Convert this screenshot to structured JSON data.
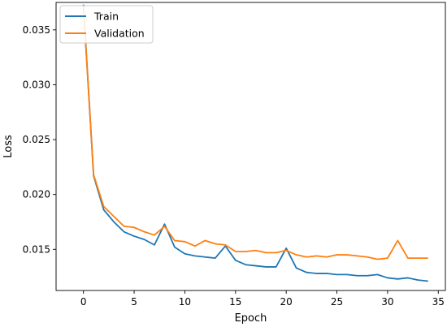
{
  "chart_data": {
    "type": "line",
    "title": "",
    "xlabel": "Epoch",
    "ylabel": "Loss",
    "xlim": [
      -2.7,
      35.7
    ],
    "ylim": [
      0.01125,
      0.0375
    ],
    "xticks": [
      0,
      5,
      10,
      15,
      20,
      25,
      30,
      35
    ],
    "xtick_labels": [
      "0",
      "5",
      "10",
      "15",
      "20",
      "25",
      "30",
      "35"
    ],
    "yticks": [
      0.015,
      0.02,
      0.025,
      0.03,
      0.035
    ],
    "ytick_labels": [
      "0.015",
      "0.020",
      "0.025",
      "0.030",
      "0.035"
    ],
    "grid": false,
    "legend_position": "upper-left",
    "x": [
      0,
      1,
      2,
      3,
      4,
      5,
      6,
      7,
      8,
      9,
      10,
      11,
      12,
      13,
      14,
      15,
      16,
      17,
      18,
      19,
      20,
      21,
      22,
      23,
      24,
      25,
      26,
      27,
      28,
      29,
      30,
      31,
      32,
      33,
      34
    ],
    "series": [
      {
        "name": "Train",
        "color": "#1f77b4",
        "values": [
          0.0373,
          0.0217,
          0.0186,
          0.0175,
          0.0166,
          0.0162,
          0.0159,
          0.0154,
          0.0173,
          0.0152,
          0.0146,
          0.0144,
          0.0143,
          0.0142,
          0.0153,
          0.014,
          0.0136,
          0.0135,
          0.0134,
          0.0134,
          0.0151,
          0.0133,
          0.0129,
          0.0128,
          0.0128,
          0.0127,
          0.0127,
          0.0126,
          0.0126,
          0.0127,
          0.0124,
          0.0123,
          0.0124,
          0.0122,
          0.0121
        ]
      },
      {
        "name": "Validation",
        "color": "#ff7f0e",
        "values": [
          0.0371,
          0.0218,
          0.0189,
          0.018,
          0.0171,
          0.017,
          0.0166,
          0.0163,
          0.0171,
          0.0158,
          0.0157,
          0.0153,
          0.0158,
          0.0155,
          0.0154,
          0.0148,
          0.0148,
          0.0149,
          0.0147,
          0.0147,
          0.0149,
          0.0145,
          0.0143,
          0.0144,
          0.0143,
          0.0145,
          0.0145,
          0.0144,
          0.0143,
          0.0141,
          0.0142,
          0.0158,
          0.0142,
          0.0142,
          0.0142
        ]
      }
    ]
  }
}
